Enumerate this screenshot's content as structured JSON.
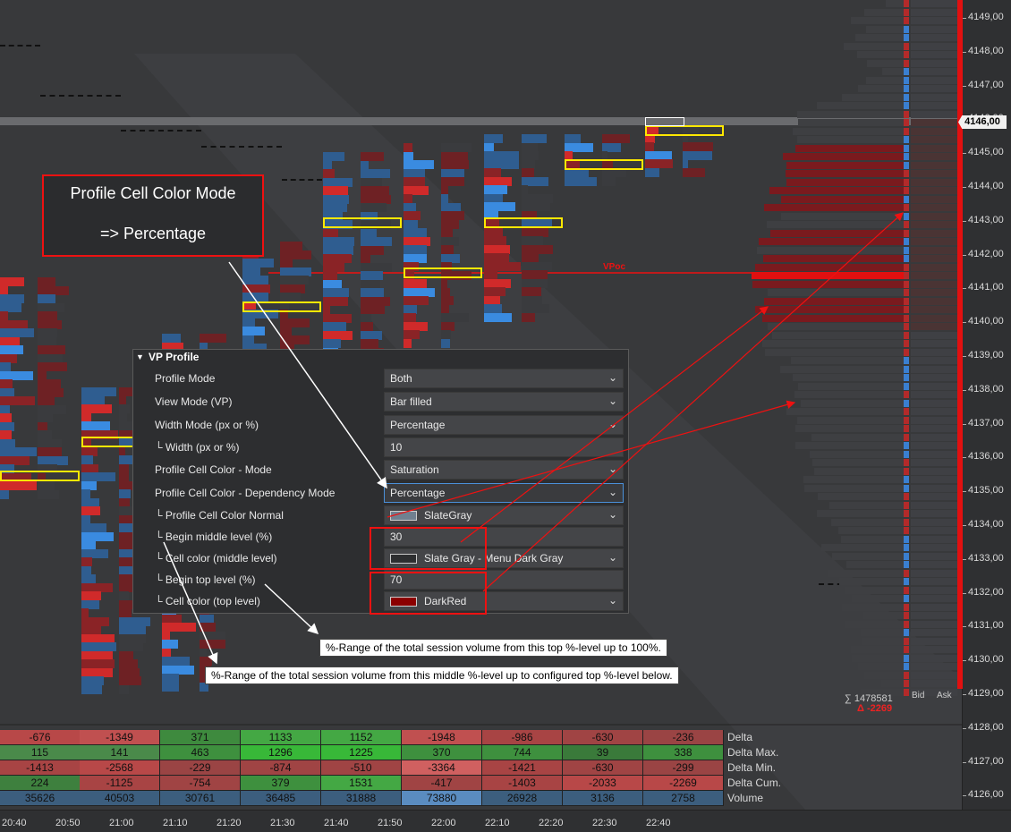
{
  "price_axis": {
    "labels": [
      "4149,00",
      "4148,00",
      "4147,00",
      "4146,00",
      "4145,00",
      "4144,00",
      "4143,00",
      "4142,00",
      "4141,00",
      "4140,00",
      "4139,00",
      "4138,00",
      "4137,00",
      "4136,00",
      "4135,00",
      "4134,00",
      "4133,00",
      "4132,00",
      "4131,00",
      "4130,00",
      "4129,00",
      "4128,00",
      "4127,00",
      "4126,00"
    ],
    "current": "4146,00"
  },
  "time_axis": [
    "20:40",
    "20:50",
    "21:00",
    "21:10",
    "21:20",
    "21:30",
    "21:40",
    "21:50",
    "22:00",
    "22:10",
    "22:20",
    "22:30",
    "22:40"
  ],
  "vpoc_label": "VPoc",
  "session": {
    "sum_label": "∑ 1478581",
    "delta_label": "Δ  -2269",
    "bid_header": "Bid",
    "ask_header": "Ask"
  },
  "stats": {
    "row_labels": [
      "Delta",
      "Delta Max.",
      "Delta Min.",
      "Delta Cum.",
      "Volume"
    ],
    "rows": [
      [
        "-676",
        "-1349",
        "371",
        "1133",
        "1152",
        "-1948",
        "-986",
        "-630",
        "-236"
      ],
      [
        "115",
        "141",
        "463",
        "1296",
        "1225",
        "370",
        "744",
        "39",
        "338"
      ],
      [
        "-1413",
        "-2568",
        "-229",
        "-874",
        "-510",
        "-3364",
        "-1421",
        "-630",
        "-299"
      ],
      [
        "224",
        "-1125",
        "-754",
        "379",
        "1531",
        "-417",
        "-1403",
        "-2033",
        "-2269"
      ],
      [
        "35626",
        "40503",
        "30761",
        "36485",
        "31888",
        "73880",
        "26928",
        "3136",
        "2758"
      ]
    ],
    "colors": [
      [
        "#b84848",
        "#c05050",
        "#3e8a3e",
        "#44a844",
        "#44a844",
        "#c05050",
        "#a84444",
        "#a04444",
        "#9a4444"
      ],
      [
        "#4a8a4a",
        "#4a8a4a",
        "#3e903e",
        "#38b838",
        "#38b838",
        "#3e903e",
        "#3e903e",
        "#3a7a3a",
        "#3e903e"
      ],
      [
        "#a84444",
        "#b84848",
        "#9a4444",
        "#a04444",
        "#a04444",
        "#d06060",
        "#a84444",
        "#a04444",
        "#9a4444"
      ],
      [
        "#3e803e",
        "#a84444",
        "#a04444",
        "#3e903e",
        "#44a844",
        "#a04444",
        "#a84444",
        "#b84848",
        "#b84848"
      ],
      [
        "#3c5e7e",
        "#3c5e7e",
        "#3c5e7e",
        "#3c5e7e",
        "#3c5e7e",
        "#5a8cc0",
        "#3c5e7e",
        "#3c5e7e",
        "#3c5e7e"
      ]
    ]
  },
  "panel": {
    "title": "VP Profile",
    "rows": [
      {
        "label": "Profile Mode",
        "value": "Both",
        "type": "select"
      },
      {
        "label": "View Mode (VP)",
        "value": "Bar filled",
        "type": "select"
      },
      {
        "label": "Width Mode (px or %)",
        "value": "Percentage",
        "type": "select"
      },
      {
        "label": "└ Width (px or %)",
        "value": "10",
        "type": "input"
      },
      {
        "label": "Profile Cell Color - Mode",
        "value": "Saturation",
        "type": "select"
      },
      {
        "label": "Profile Cell Color - Dependency Mode",
        "value": "Percentage",
        "type": "select"
      },
      {
        "label": "└ Profile Cell Color Normal",
        "value": "SlateGray",
        "type": "color",
        "swatch": "#708090"
      },
      {
        "label": "└ Begin middle level (%)",
        "value": "30",
        "type": "input"
      },
      {
        "label": "└ Cell color (middle level)",
        "value": "Slate Gray - Menu Dark Gray",
        "type": "color",
        "swatch": "#2d2e30"
      },
      {
        "label": "└ Begin top level (%)",
        "value": "70",
        "type": "input"
      },
      {
        "label": "└ Cell color (top level)",
        "value": "DarkRed",
        "type": "color",
        "swatch": "#8b0000"
      }
    ]
  },
  "callout": {
    "line1": "Profile Cell Color Mode",
    "line2": "=> Percentage"
  },
  "notes": {
    "top": "%-Range of the total session volume from this top %-level up to 100%.",
    "middle": "%-Range of the total session volume from this middle %-level up to configured top %-level below."
  },
  "colors": {
    "bid_blue": "#3a7fd0",
    "ask_red": "#c8242a",
    "highlight": "#ffe800",
    "annotation": "#e11111"
  }
}
